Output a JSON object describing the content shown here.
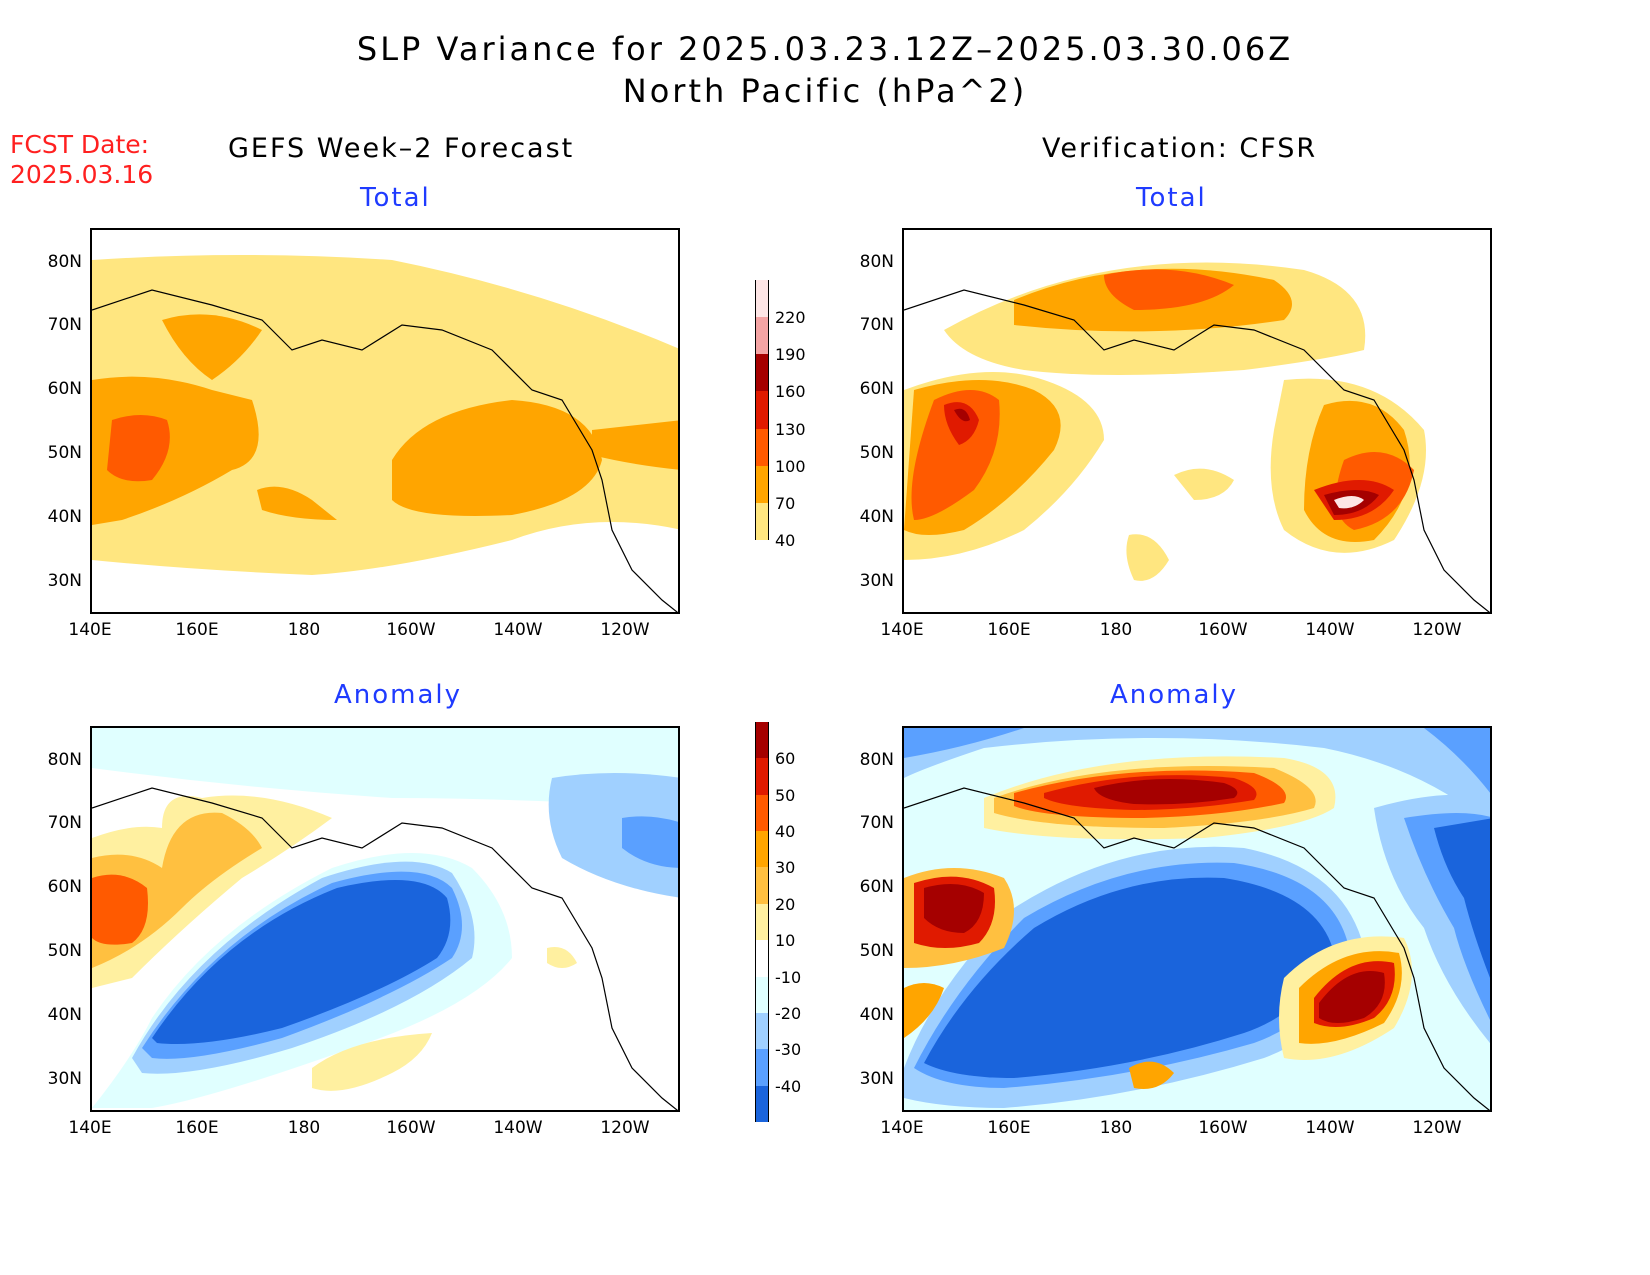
{
  "header": {
    "title_line1": "SLP Variance for 2025.03.23.12Z–2025.03.30.06Z",
    "title_line2": "North Pacific (hPa^2)",
    "fcst_label": "FCST Date:",
    "fcst_date": "2025.03.16",
    "left_heading": "GEFS Week–2 Forecast",
    "right_heading": "Verification: CFSR"
  },
  "panels": {
    "total_title": "Total",
    "anomaly_title": "Anomaly"
  },
  "axes": {
    "lat_ticks": [
      "80N",
      "70N",
      "60N",
      "50N",
      "40N",
      "30N"
    ],
    "lon_ticks": [
      "140E",
      "160E",
      "180",
      "160W",
      "140W",
      "120W"
    ]
  },
  "colorbars": {
    "total": {
      "levels": [
        "220",
        "190",
        "160",
        "130",
        "100",
        "70",
        "40"
      ],
      "colors": [
        "#fde5e5",
        "#f4a4a4",
        "#a50000",
        "#e01a00",
        "#ff5a00",
        "#ffa500",
        "#ffe680"
      ]
    },
    "anomaly": {
      "levels": [
        "60",
        "50",
        "40",
        "30",
        "20",
        "10",
        "-10",
        "-20",
        "-30",
        "-40"
      ],
      "colors": [
        "#a50000",
        "#e01a00",
        "#ff5a00",
        "#ffa500",
        "#ffc040",
        "#fff0a0",
        "#ffffff",
        "#e0ffff",
        "#a0d0ff",
        "#5aa0ff",
        "#1a64dc"
      ]
    }
  },
  "colors": {
    "red_text": "#ff2020",
    "blue_text": "#1f3bff"
  }
}
